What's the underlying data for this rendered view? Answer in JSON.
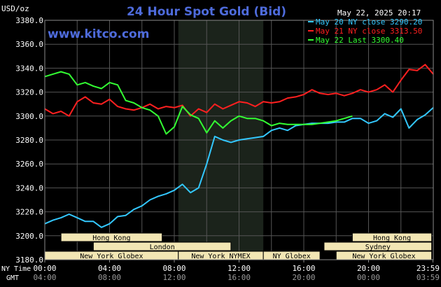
{
  "header": {
    "title": "24 Hour Spot Gold (Bid)",
    "unit": "USD/oz",
    "date": "May 22, 2025 20:17",
    "website": "www.kitco.com"
  },
  "colors": {
    "background": "#000000",
    "grid": "#555555",
    "title": "#4e6bdb",
    "website": "#4e6bdb",
    "highlight": "#1b231b",
    "may20": "#33c8ff",
    "may21": "#ff2020",
    "may22": "#33ff33",
    "session_fill": "#f2e6b4",
    "session_text": "#000000"
  },
  "legend": [
    {
      "label": "May 20 NY close 3290.20",
      "color": "#33c8ff"
    },
    {
      "label": "May 21 NY close 3313.50",
      "color": "#ff2020"
    },
    {
      "label": "May 22 Last 3300.40",
      "color": "#33ff33"
    }
  ],
  "footer": {
    "ny_time_label": "NY Time",
    "gmt_label": "GMT"
  },
  "sessions": [
    {
      "label": "Hong Kong",
      "start": 1.0,
      "end": 7.25,
      "row": 1
    },
    {
      "label": "Hong Kong",
      "start": 19.0,
      "end": 23.9,
      "row": 1
    },
    {
      "label": "London",
      "start": 3.0,
      "end": 11.5,
      "row": 2
    },
    {
      "label": "Sydney",
      "start": 17.25,
      "end": 23.9,
      "row": 2
    },
    {
      "label": "New York Globex",
      "start": 0.0,
      "end": 8.25,
      "row": 3
    },
    {
      "label": "New York NYMEX",
      "start": 8.25,
      "end": 13.5,
      "row": 3
    },
    {
      "label": "NY Globex",
      "start": 13.5,
      "end": 17.0,
      "row": 3
    },
    {
      "label": "New York Globex",
      "start": 18.0,
      "end": 23.9,
      "row": 3
    }
  ],
  "chart_data": {
    "type": "line",
    "title": "24 Hour Spot Gold (Bid)",
    "ylabel": "USD/oz",
    "ylim": [
      3180,
      3380
    ],
    "xlim": [
      0,
      24
    ],
    "yticks": [
      "3180.0",
      "3200.0",
      "3220.0",
      "3240.0",
      "3260.0",
      "3280.0",
      "3300.0",
      "3320.0",
      "3340.0",
      "3360.0",
      "3380.0"
    ],
    "xticks_ny": [
      "00:00",
      "04:00",
      "08:00",
      "12:00",
      "16:00",
      "20:00",
      "23:59"
    ],
    "xticks_gmt": [
      "04:00",
      "08:00",
      "12:00",
      "16:00",
      "20:00",
      "00:00",
      "03:59"
    ],
    "x_tick_hours": [
      0,
      4,
      8,
      12,
      16,
      20,
      23.98
    ],
    "highlight_hours": [
      8.25,
      13.5
    ],
    "grid": true,
    "legend_position": "top-right",
    "series": [
      {
        "name": "May 20 NY close 3290.20",
        "color": "#33c8ff",
        "x": [
          0,
          0.5,
          1,
          1.5,
          2,
          2.5,
          3,
          3.5,
          4,
          4.5,
          5,
          5.5,
          6,
          6.5,
          7,
          7.5,
          8,
          8.5,
          9,
          9.5,
          10,
          10.5,
          11,
          11.5,
          12,
          12.5,
          13,
          13.5,
          14,
          14.5,
          15,
          15.5,
          16,
          16.5,
          17,
          17.5,
          18,
          18.5,
          19,
          19.5,
          20,
          20.5,
          21,
          21.5,
          22,
          22.5,
          23,
          23.5,
          24
        ],
        "values": [
          3210,
          3213,
          3215,
          3218,
          3215,
          3212,
          3212,
          3207,
          3210,
          3216,
          3217,
          3222,
          3225,
          3230,
          3233,
          3235,
          3238,
          3243,
          3236,
          3240,
          3260,
          3283,
          3280,
          3278,
          3280,
          3281,
          3282,
          3283,
          3288,
          3290,
          3288,
          3292,
          3293,
          3294,
          3294,
          3294,
          3295,
          3295,
          3298,
          3298,
          3294,
          3296,
          3302,
          3299,
          3306,
          3290,
          3297,
          3301,
          3307
        ]
      },
      {
        "name": "May 21 NY close 3313.50",
        "color": "#ff2020",
        "x": [
          0,
          0.5,
          1,
          1.5,
          2,
          2.5,
          3,
          3.5,
          4,
          4.5,
          5,
          5.5,
          6,
          6.5,
          7,
          7.5,
          8,
          8.5,
          9,
          9.5,
          10,
          10.5,
          11,
          11.5,
          12,
          12.5,
          13,
          13.5,
          14,
          14.5,
          15,
          15.5,
          16,
          16.5,
          17,
          17.5,
          18,
          18.5,
          19,
          19.5,
          20,
          20.5,
          21,
          21.5,
          22,
          22.5,
          23,
          23.5,
          24
        ],
        "values": [
          3306,
          3302,
          3304,
          3300,
          3312,
          3316,
          3311,
          3310,
          3314,
          3308,
          3306,
          3305,
          3307,
          3310,
          3306,
          3308,
          3307,
          3309,
          3300,
          3306,
          3303,
          3310,
          3306,
          3309,
          3312,
          3311,
          3308,
          3312,
          3311,
          3312,
          3315,
          3316,
          3318,
          3322,
          3319,
          3318,
          3319,
          3317,
          3319,
          3322,
          3320,
          3322,
          3326,
          3320,
          3330,
          3339,
          3338,
          3343,
          3335
        ]
      },
      {
        "name": "May 22 Last 3300.40",
        "color": "#33ff33",
        "x": [
          0,
          0.5,
          1,
          1.5,
          2,
          2.5,
          3,
          3.5,
          4,
          4.5,
          5,
          5.5,
          6,
          6.5,
          7,
          7.5,
          8,
          8.5,
          9,
          9.5,
          10,
          10.5,
          11,
          11.5,
          12,
          12.5,
          13,
          13.5,
          14,
          14.5,
          15,
          15.5,
          16,
          16.5,
          17,
          17.5,
          18,
          18.5,
          19
        ],
        "values": [
          3333,
          3335,
          3337,
          3335,
          3326,
          3328,
          3325,
          3323,
          3328,
          3326,
          3313,
          3311,
          3307,
          3305,
          3300,
          3285,
          3291,
          3308,
          3301,
          3298,
          3286,
          3296,
          3290,
          3296,
          3300,
          3298,
          3298,
          3296,
          3292,
          3294,
          3293,
          3293,
          3293,
          3293,
          3294,
          3295,
          3296,
          3298,
          3300
        ]
      }
    ]
  }
}
